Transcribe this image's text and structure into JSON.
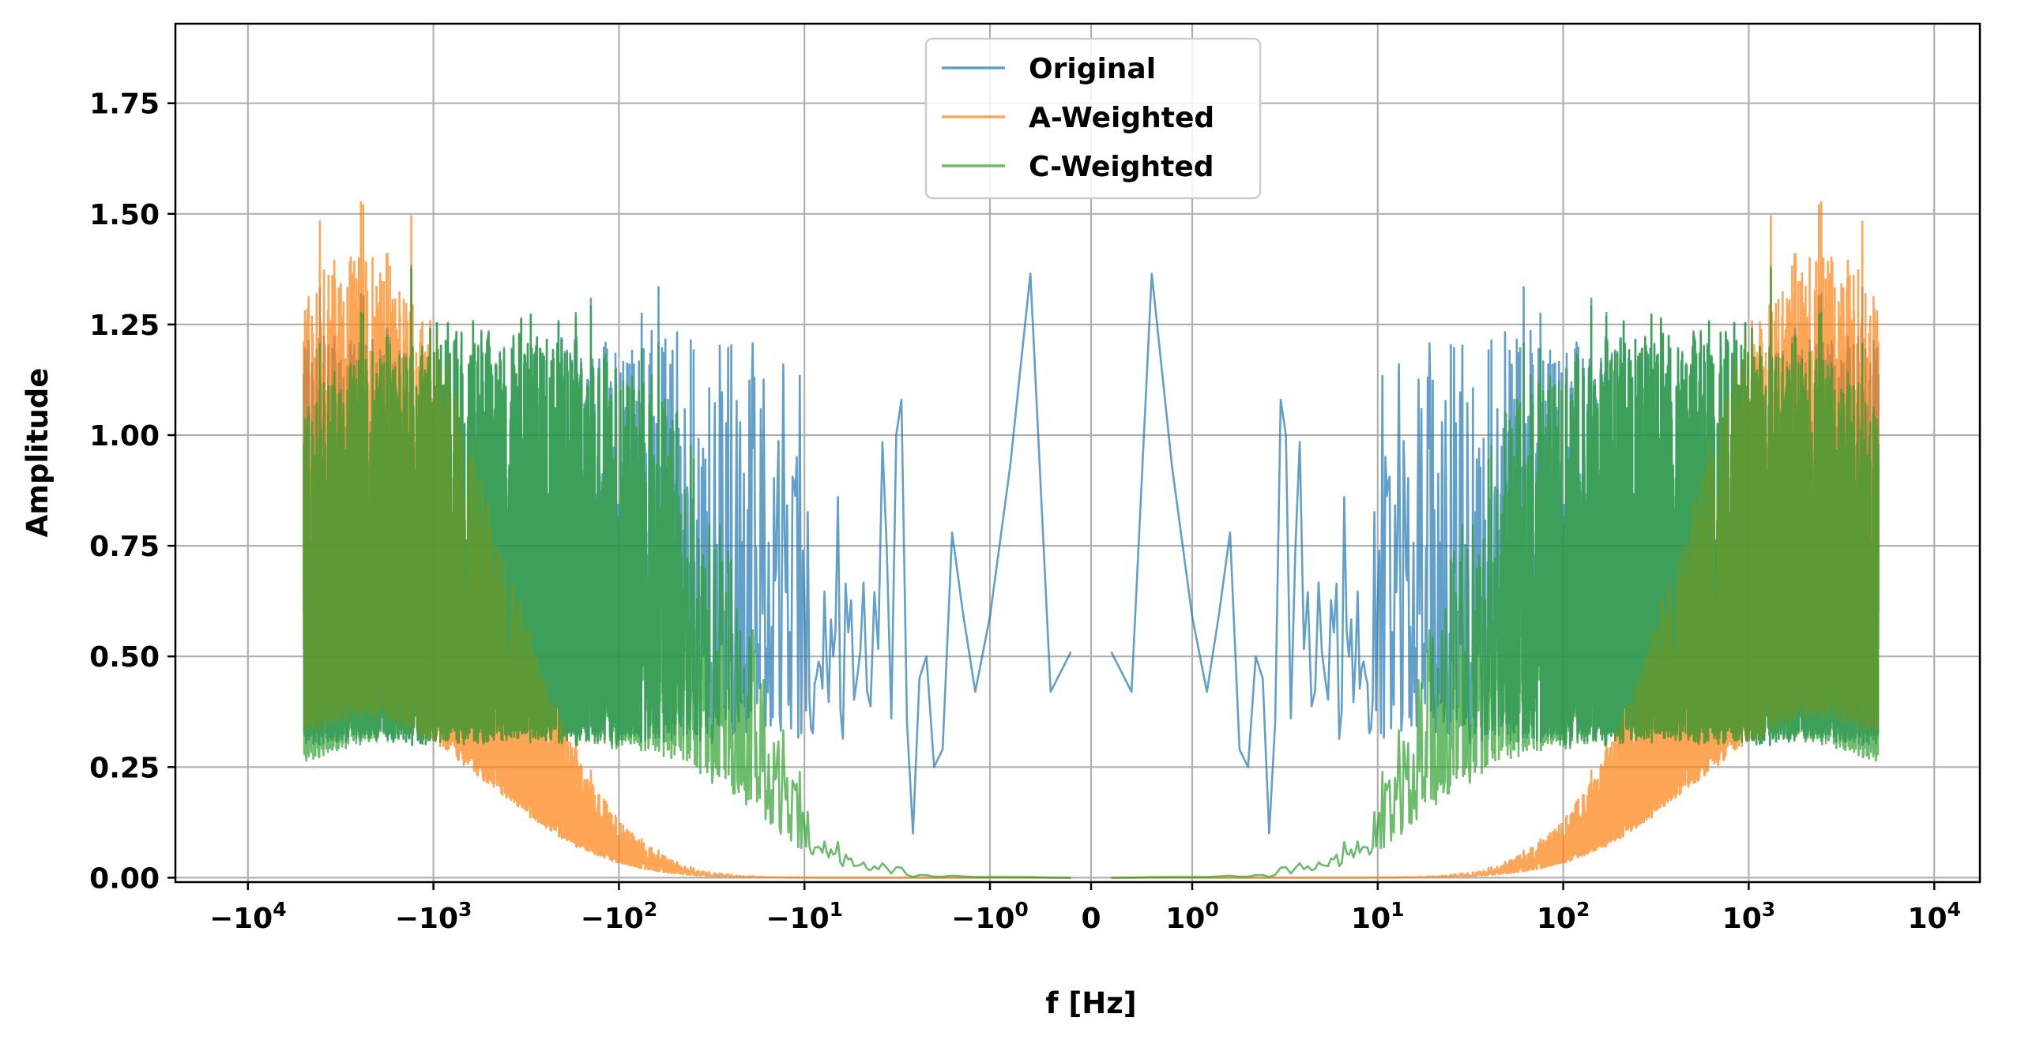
{
  "chart_data": {
    "type": "line",
    "title": "",
    "xlabel": "f [Hz]",
    "ylabel": "Amplitude",
    "xscale": "symlog",
    "xlim": [
      -15000,
      15000
    ],
    "ylim": [
      -0.09,
      1.93
    ],
    "grid": true,
    "legend_position": "upper center",
    "x_ticks": [
      {
        "value": -10000,
        "base": "−10",
        "exp": "4"
      },
      {
        "value": -1000,
        "base": "−10",
        "exp": "3"
      },
      {
        "value": -100,
        "base": "−10",
        "exp": "2"
      },
      {
        "value": -10,
        "base": "−10",
        "exp": "1"
      },
      {
        "value": -1,
        "base": "−10",
        "exp": "0"
      },
      {
        "value": 0,
        "base": "0",
        "exp": ""
      },
      {
        "value": 1,
        "base": "10",
        "exp": "0"
      },
      {
        "value": 10,
        "base": "10",
        "exp": "1"
      },
      {
        "value": 100,
        "base": "10",
        "exp": "2"
      },
      {
        "value": 1000,
        "base": "10",
        "exp": "3"
      },
      {
        "value": 10000,
        "base": "10",
        "exp": "4"
      }
    ],
    "y_ticks": [
      {
        "value": 0.0,
        "label": "0.00"
      },
      {
        "value": 0.25,
        "label": "0.25"
      },
      {
        "value": 0.5,
        "label": "0.50"
      },
      {
        "value": 0.75,
        "label": "0.75"
      },
      {
        "value": 1.0,
        "label": "1.00"
      },
      {
        "value": 1.25,
        "label": "1.25"
      },
      {
        "value": 1.5,
        "label": "1.50"
      },
      {
        "value": 1.75,
        "label": "1.75"
      }
    ],
    "series": [
      {
        "name": "Original",
        "color": "#1f77b4",
        "opacity": 0.7
      },
      {
        "name": "A-Weighted",
        "color": "#ff7f0e",
        "opacity": 0.7
      },
      {
        "name": "C-Weighted",
        "color": "#2ca02c",
        "opacity": 0.7
      }
    ],
    "frequency_range_hz": [
      -5000,
      5000
    ],
    "original_low_freq_points": [
      {
        "f": 0.2,
        "a": 0.51
      },
      {
        "f": 0.4,
        "a": 0.42
      },
      {
        "f": 0.6,
        "a": 1.365
      },
      {
        "f": 0.8,
        "a": 0.93
      },
      {
        "f": 1.0,
        "a": 0.59
      },
      {
        "f": 1.2,
        "a": 0.42
      },
      {
        "f": 1.4,
        "a": 0.6
      },
      {
        "f": 1.6,
        "a": 0.78
      },
      {
        "f": 1.8,
        "a": 0.29
      },
      {
        "f": 2.0,
        "a": 0.25
      },
      {
        "f": 2.2,
        "a": 0.5
      },
      {
        "f": 2.4,
        "a": 0.45
      },
      {
        "f": 2.6,
        "a": 0.1
      },
      {
        "f": 2.8,
        "a": 0.35
      },
      {
        "f": 3.0,
        "a": 1.08
      },
      {
        "f": 3.2,
        "a": 1.0
      },
      {
        "f": 3.4,
        "a": 0.36
      }
    ]
  }
}
